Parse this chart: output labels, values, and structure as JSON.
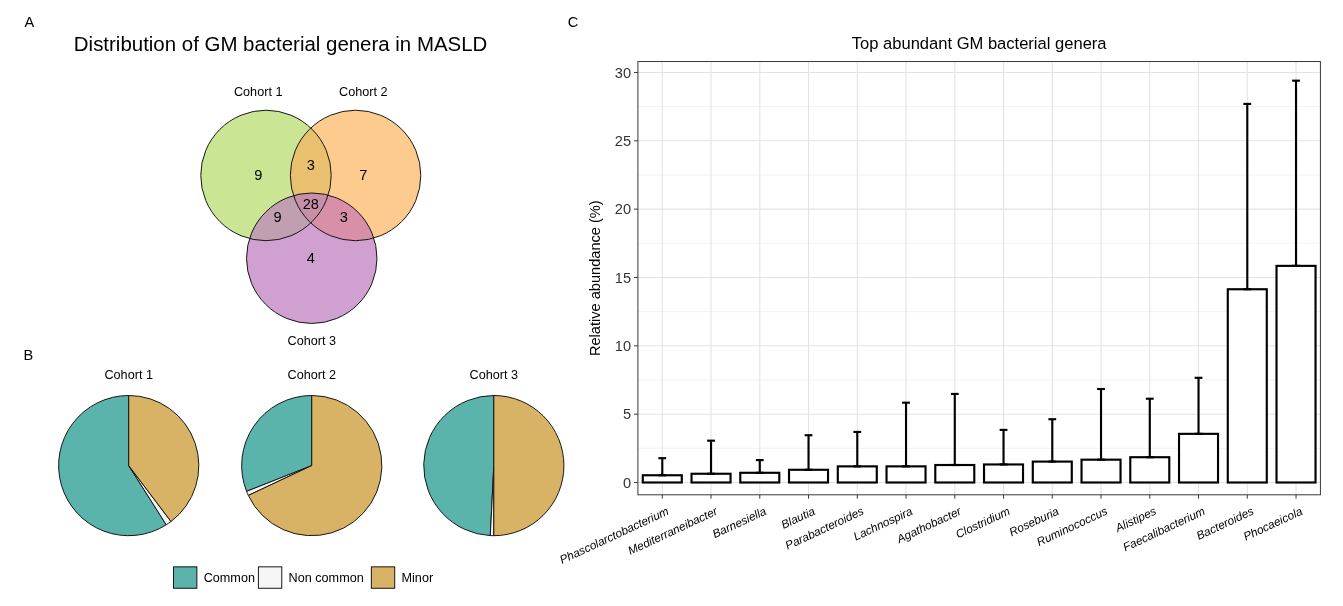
{
  "chart_data": [
    {
      "type": "other",
      "title": "Distribution of GM bacterial genera in MASLD",
      "annotations": [
        "A",
        "Cohort 1",
        "Cohort 2",
        "Cohort 3",
        "9",
        "7",
        "4",
        "3",
        "9",
        "3",
        "28"
      ],
      "colors": [
        "#cae694",
        "#fdcb8e",
        "#d0a1d0",
        "#e8c06e",
        "#c0a0b0",
        "#d890a8",
        "#c890a8"
      ]
    },
    {
      "type": "pie",
      "title": "Cohort 1",
      "annotations": [
        "B"
      ],
      "categories": [
        null,
        null,
        null
      ],
      "colors": [
        "#5ab4ac",
        "#f5f5f5",
        "#d8b365"
      ],
      "values": [
        59,
        1.3,
        39.7
      ]
    },
    {
      "type": "pie",
      "title": "Cohort 2",
      "categories": [
        "Common",
        "Non common",
        "Minor"
      ],
      "colors": [
        "#5ab4ac",
        "#f5f5f5",
        "#d8b365"
      ],
      "values": [
        31,
        1,
        68
      ],
      "legend": "bottom"
    },
    {
      "type": "pie",
      "title": "Cohort 3",
      "categories": [
        null,
        null,
        null
      ],
      "colors": [
        "#5ab4ac",
        "#f5f5f5",
        "#d8b365"
      ],
      "values": [
        49.2,
        0.8,
        50
      ]
    },
    {
      "type": "bar",
      "title": "Top abundant GM bacterial genera",
      "ylabel": "Relative abundance (%)",
      "annotations": [
        "C"
      ],
      "grid": true,
      "color": "#ffffff",
      "categories": [
        "Phascolarctobacterium",
        "Mediterraneibacter",
        "Barnesiella",
        "Blautia",
        "Parabacteroides",
        "Lachnospira",
        "Agathobacter",
        "Clostridium",
        "Roseburia",
        "Ruminococcus",
        "Alistipes",
        "Faecalibacterium",
        "Bacteroides",
        "Phocaeicola"
      ],
      "values": [
        0.53,
        0.64,
        0.71,
        0.93,
        1.18,
        1.18,
        1.28,
        1.32,
        1.53,
        1.67,
        1.85,
        3.56,
        14.14,
        15.85
      ],
      "errors": [
        [
          0.53,
          1.78
        ],
        [
          0.64,
          3.06
        ],
        [
          0.71,
          1.64
        ],
        [
          0.93,
          3.46
        ],
        [
          1.18,
          3.7
        ],
        [
          1.18,
          5.84
        ],
        [
          1.28,
          6.48
        ],
        [
          1.32,
          3.85
        ],
        [
          1.53,
          4.63
        ],
        [
          1.67,
          6.84
        ],
        [
          1.85,
          6.13
        ],
        [
          3.56,
          7.66
        ],
        [
          14.14,
          27.7
        ],
        [
          15.85,
          29.4
        ]
      ],
      "ylim": [
        -0.9,
        30.8
      ],
      "yticks": [
        0,
        5,
        10,
        15,
        20,
        25,
        30
      ]
    }
  ]
}
